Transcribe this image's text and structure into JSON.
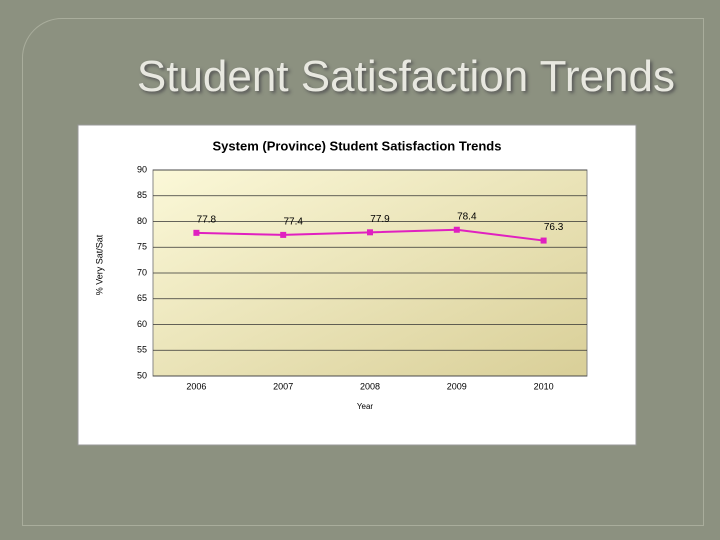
{
  "slide": {
    "title": "Student Satisfaction Trends"
  },
  "chart_data": {
    "type": "line",
    "title": "System (Province) Student Satisfaction Trends",
    "x_label": "Year",
    "y_label": "% Very Sat/Sat",
    "categories": [
      "2006",
      "2007",
      "2008",
      "2009",
      "2010"
    ],
    "series": [
      {
        "name": "% Very Sat/Sat",
        "color": "#e020c0",
        "values": [
          77.8,
          77.4,
          77.9,
          78.4,
          76.3
        ]
      }
    ],
    "ylim": [
      50,
      90
    ],
    "yticks": [
      50,
      55,
      60,
      65,
      70,
      75,
      80,
      85,
      90
    ],
    "grid": true
  }
}
